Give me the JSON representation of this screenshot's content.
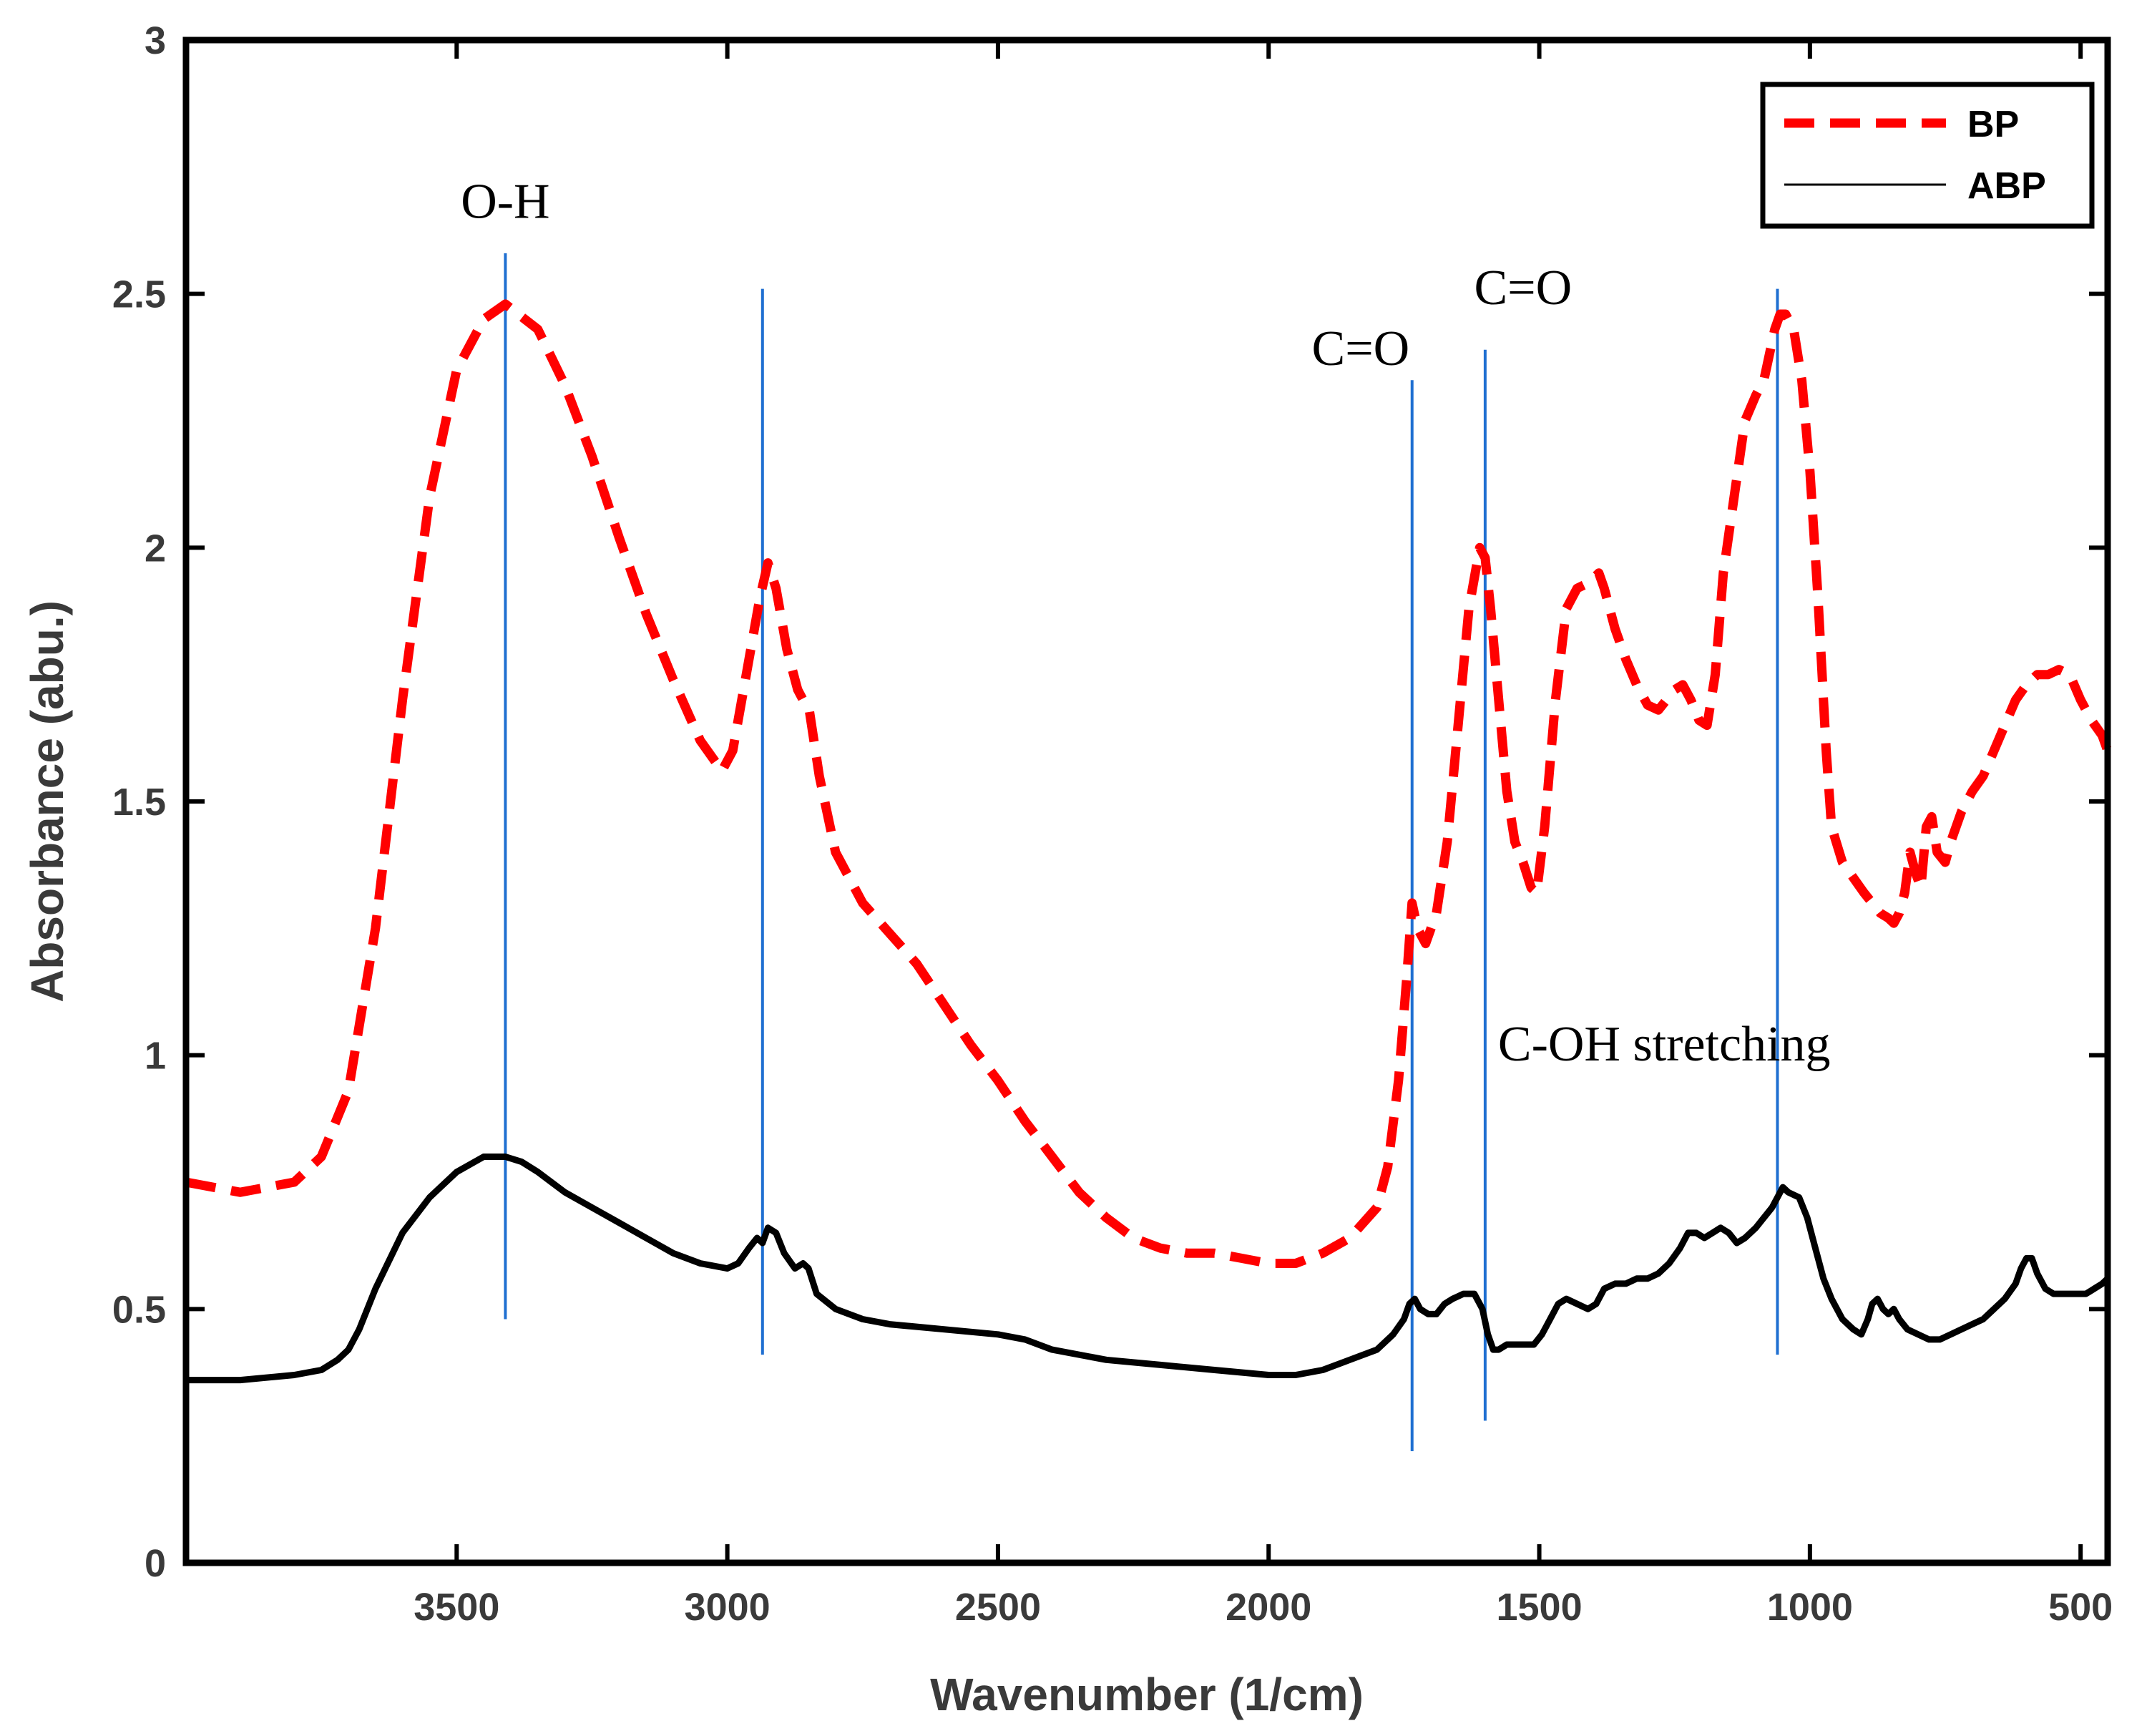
{
  "chart_data": {
    "type": "line",
    "title": "",
    "xlabel": "Wavenumber (1/cm)",
    "ylabel": "Absorbance (abu.)",
    "xlim": [
      4000,
      450
    ],
    "ylim": [
      0,
      3
    ],
    "x_reversed": true,
    "grid": false,
    "legend_position": "top-right",
    "xticks": [
      3500,
      3000,
      2500,
      2000,
      1500,
      1000,
      500
    ],
    "yticks": [
      0,
      0.5,
      1,
      1.5,
      2,
      2.5,
      3
    ],
    "ytick_labels": [
      "0",
      "0.5",
      "1",
      "1.5",
      "2",
      "2.5",
      "3"
    ],
    "series": [
      {
        "name": "BP",
        "color": "#ff0000",
        "style": "dashed",
        "points": [
          [
            4000,
            0.75
          ],
          [
            3900,
            0.73
          ],
          [
            3800,
            0.75
          ],
          [
            3750,
            0.8
          ],
          [
            3700,
            0.93
          ],
          [
            3650,
            1.25
          ],
          [
            3600,
            1.7
          ],
          [
            3550,
            2.1
          ],
          [
            3500,
            2.35
          ],
          [
            3450,
            2.45
          ],
          [
            3410,
            2.48
          ],
          [
            3350,
            2.43
          ],
          [
            3300,
            2.32
          ],
          [
            3250,
            2.18
          ],
          [
            3200,
            2.02
          ],
          [
            3150,
            1.87
          ],
          [
            3100,
            1.74
          ],
          [
            3050,
            1.62
          ],
          [
            3010,
            1.56
          ],
          [
            2990,
            1.6
          ],
          [
            2960,
            1.78
          ],
          [
            2940,
            1.9
          ],
          [
            2925,
            1.97
          ],
          [
            2910,
            1.92
          ],
          [
            2890,
            1.8
          ],
          [
            2870,
            1.72
          ],
          [
            2860,
            1.7
          ],
          [
            2850,
            1.69
          ],
          [
            2830,
            1.55
          ],
          [
            2800,
            1.4
          ],
          [
            2750,
            1.3
          ],
          [
            2700,
            1.24
          ],
          [
            2650,
            1.18
          ],
          [
            2600,
            1.1
          ],
          [
            2550,
            1.02
          ],
          [
            2500,
            0.95
          ],
          [
            2450,
            0.87
          ],
          [
            2400,
            0.8
          ],
          [
            2350,
            0.73
          ],
          [
            2300,
            0.68
          ],
          [
            2250,
            0.64
          ],
          [
            2200,
            0.62
          ],
          [
            2150,
            0.61
          ],
          [
            2100,
            0.61
          ],
          [
            2050,
            0.6
          ],
          [
            2000,
            0.59
          ],
          [
            1950,
            0.59
          ],
          [
            1900,
            0.61
          ],
          [
            1850,
            0.64
          ],
          [
            1800,
            0.7
          ],
          [
            1780,
            0.78
          ],
          [
            1760,
            0.95
          ],
          [
            1745,
            1.15
          ],
          [
            1735,
            1.3
          ],
          [
            1725,
            1.25
          ],
          [
            1710,
            1.22
          ],
          [
            1690,
            1.28
          ],
          [
            1670,
            1.42
          ],
          [
            1650,
            1.65
          ],
          [
            1630,
            1.88
          ],
          [
            1610,
            2.0
          ],
          [
            1600,
            1.98
          ],
          [
            1590,
            1.88
          ],
          [
            1575,
            1.7
          ],
          [
            1560,
            1.52
          ],
          [
            1545,
            1.42
          ],
          [
            1530,
            1.38
          ],
          [
            1515,
            1.33
          ],
          [
            1505,
            1.32
          ],
          [
            1490,
            1.45
          ],
          [
            1470,
            1.7
          ],
          [
            1450,
            1.88
          ],
          [
            1430,
            1.92
          ],
          [
            1410,
            1.93
          ],
          [
            1390,
            1.95
          ],
          [
            1380,
            1.92
          ],
          [
            1360,
            1.84
          ],
          [
            1340,
            1.78
          ],
          [
            1320,
            1.73
          ],
          [
            1300,
            1.69
          ],
          [
            1280,
            1.68
          ],
          [
            1265,
            1.7
          ],
          [
            1250,
            1.72
          ],
          [
            1235,
            1.73
          ],
          [
            1220,
            1.7
          ],
          [
            1205,
            1.66
          ],
          [
            1190,
            1.65
          ],
          [
            1175,
            1.75
          ],
          [
            1160,
            1.95
          ],
          [
            1140,
            2.1
          ],
          [
            1120,
            2.25
          ],
          [
            1100,
            2.3
          ],
          [
            1085,
            2.33
          ],
          [
            1075,
            2.38
          ],
          [
            1065,
            2.43
          ],
          [
            1055,
            2.46
          ],
          [
            1045,
            2.46
          ],
          [
            1030,
            2.43
          ],
          [
            1015,
            2.33
          ],
          [
            1000,
            2.15
          ],
          [
            985,
            1.9
          ],
          [
            970,
            1.6
          ],
          [
            960,
            1.45
          ],
          [
            940,
            1.38
          ],
          [
            920,
            1.35
          ],
          [
            900,
            1.32
          ],
          [
            885,
            1.3
          ],
          [
            870,
            1.28
          ],
          [
            855,
            1.27
          ],
          [
            845,
            1.26
          ],
          [
            835,
            1.28
          ],
          [
            825,
            1.32
          ],
          [
            815,
            1.4
          ],
          [
            805,
            1.36
          ],
          [
            795,
            1.33
          ],
          [
            785,
            1.45
          ],
          [
            775,
            1.47
          ],
          [
            765,
            1.4
          ],
          [
            750,
            1.38
          ],
          [
            740,
            1.42
          ],
          [
            720,
            1.48
          ],
          [
            700,
            1.52
          ],
          [
            680,
            1.55
          ],
          [
            660,
            1.6
          ],
          [
            640,
            1.65
          ],
          [
            620,
            1.7
          ],
          [
            600,
            1.73
          ],
          [
            580,
            1.75
          ],
          [
            560,
            1.75
          ],
          [
            540,
            1.76
          ],
          [
            520,
            1.75
          ],
          [
            500,
            1.7
          ],
          [
            480,
            1.66
          ],
          [
            460,
            1.63
          ],
          [
            450,
            1.6
          ]
        ]
      },
      {
        "name": "ABP",
        "color": "#000000",
        "style": "solid",
        "points": [
          [
            4000,
            0.36
          ],
          [
            3900,
            0.36
          ],
          [
            3800,
            0.37
          ],
          [
            3750,
            0.38
          ],
          [
            3720,
            0.4
          ],
          [
            3700,
            0.42
          ],
          [
            3680,
            0.46
          ],
          [
            3650,
            0.54
          ],
          [
            3600,
            0.65
          ],
          [
            3550,
            0.72
          ],
          [
            3500,
            0.77
          ],
          [
            3450,
            0.8
          ],
          [
            3410,
            0.8
          ],
          [
            3380,
            0.79
          ],
          [
            3350,
            0.77
          ],
          [
            3300,
            0.73
          ],
          [
            3250,
            0.7
          ],
          [
            3200,
            0.67
          ],
          [
            3150,
            0.64
          ],
          [
            3100,
            0.61
          ],
          [
            3050,
            0.59
          ],
          [
            3000,
            0.58
          ],
          [
            2980,
            0.59
          ],
          [
            2960,
            0.62
          ],
          [
            2945,
            0.64
          ],
          [
            2935,
            0.63
          ],
          [
            2925,
            0.66
          ],
          [
            2910,
            0.65
          ],
          [
            2895,
            0.61
          ],
          [
            2875,
            0.58
          ],
          [
            2860,
            0.59
          ],
          [
            2850,
            0.58
          ],
          [
            2835,
            0.53
          ],
          [
            2800,
            0.5
          ],
          [
            2750,
            0.48
          ],
          [
            2700,
            0.47
          ],
          [
            2600,
            0.46
          ],
          [
            2500,
            0.45
          ],
          [
            2450,
            0.44
          ],
          [
            2400,
            0.42
          ],
          [
            2300,
            0.4
          ],
          [
            2200,
            0.39
          ],
          [
            2100,
            0.38
          ],
          [
            2000,
            0.37
          ],
          [
            1950,
            0.37
          ],
          [
            1900,
            0.38
          ],
          [
            1850,
            0.4
          ],
          [
            1800,
            0.42
          ],
          [
            1770,
            0.45
          ],
          [
            1750,
            0.48
          ],
          [
            1740,
            0.51
          ],
          [
            1730,
            0.52
          ],
          [
            1720,
            0.5
          ],
          [
            1705,
            0.49
          ],
          [
            1690,
            0.49
          ],
          [
            1675,
            0.51
          ],
          [
            1660,
            0.52
          ],
          [
            1640,
            0.53
          ],
          [
            1620,
            0.53
          ],
          [
            1605,
            0.5
          ],
          [
            1595,
            0.45
          ],
          [
            1585,
            0.42
          ],
          [
            1575,
            0.42
          ],
          [
            1560,
            0.43
          ],
          [
            1540,
            0.43
          ],
          [
            1520,
            0.43
          ],
          [
            1510,
            0.43
          ],
          [
            1495,
            0.45
          ],
          [
            1480,
            0.48
          ],
          [
            1465,
            0.51
          ],
          [
            1450,
            0.52
          ],
          [
            1430,
            0.51
          ],
          [
            1410,
            0.5
          ],
          [
            1395,
            0.51
          ],
          [
            1380,
            0.54
          ],
          [
            1360,
            0.55
          ],
          [
            1340,
            0.55
          ],
          [
            1320,
            0.56
          ],
          [
            1300,
            0.56
          ],
          [
            1280,
            0.57
          ],
          [
            1260,
            0.59
          ],
          [
            1240,
            0.62
          ],
          [
            1225,
            0.65
          ],
          [
            1210,
            0.65
          ],
          [
            1195,
            0.64
          ],
          [
            1180,
            0.65
          ],
          [
            1165,
            0.66
          ],
          [
            1150,
            0.65
          ],
          [
            1135,
            0.63
          ],
          [
            1120,
            0.64
          ],
          [
            1100,
            0.66
          ],
          [
            1085,
            0.68
          ],
          [
            1070,
            0.7
          ],
          [
            1060,
            0.72
          ],
          [
            1050,
            0.74
          ],
          [
            1040,
            0.73
          ],
          [
            1020,
            0.72
          ],
          [
            1005,
            0.68
          ],
          [
            990,
            0.62
          ],
          [
            975,
            0.56
          ],
          [
            960,
            0.52
          ],
          [
            940,
            0.48
          ],
          [
            920,
            0.46
          ],
          [
            905,
            0.45
          ],
          [
            893,
            0.48
          ],
          [
            885,
            0.51
          ],
          [
            875,
            0.52
          ],
          [
            865,
            0.5
          ],
          [
            855,
            0.49
          ],
          [
            845,
            0.5
          ],
          [
            835,
            0.48
          ],
          [
            820,
            0.46
          ],
          [
            800,
            0.45
          ],
          [
            780,
            0.44
          ],
          [
            760,
            0.44
          ],
          [
            740,
            0.45
          ],
          [
            720,
            0.46
          ],
          [
            700,
            0.47
          ],
          [
            680,
            0.48
          ],
          [
            660,
            0.5
          ],
          [
            640,
            0.52
          ],
          [
            620,
            0.55
          ],
          [
            610,
            0.58
          ],
          [
            600,
            0.6
          ],
          [
            590,
            0.6
          ],
          [
            580,
            0.57
          ],
          [
            565,
            0.54
          ],
          [
            550,
            0.53
          ],
          [
            530,
            0.53
          ],
          [
            510,
            0.53
          ],
          [
            490,
            0.53
          ],
          [
            475,
            0.54
          ],
          [
            460,
            0.55
          ],
          [
            450,
            0.56
          ]
        ]
      }
    ],
    "reference_lines": [
      {
        "x": 3410,
        "y_from": 0.48,
        "y_to": 2.58
      },
      {
        "x": 2935,
        "y_from": 0.41,
        "y_to": 2.51
      },
      {
        "x": 1735,
        "y_from": 0.22,
        "y_to": 2.33
      },
      {
        "x": 1600,
        "y_from": 0.28,
        "y_to": 2.39
      },
      {
        "x": 1060,
        "y_from": 0.41,
        "y_to": 2.51
      }
    ],
    "annotations": [
      {
        "text": "O-H",
        "x": 3410,
        "y": 2.65
      },
      {
        "text": "C=O",
        "x": 1530,
        "y": 2.48
      },
      {
        "text": "C=O",
        "x": 1830,
        "y": 2.36
      },
      {
        "text": "C-OH stretching",
        "x": 1140,
        "y": 0.99
      }
    ],
    "reference_line_color": "#1f6fd1"
  }
}
